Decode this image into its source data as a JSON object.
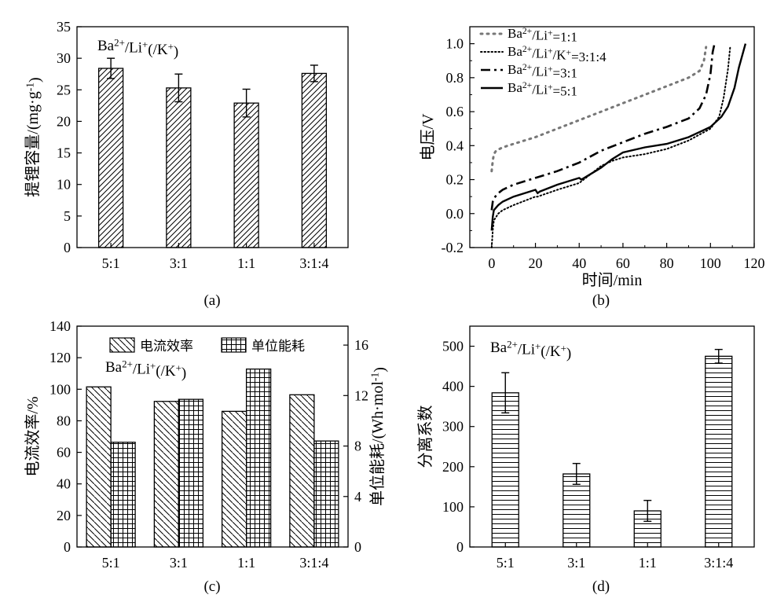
{
  "chart_data": [
    {
      "id": "a",
      "type": "bar",
      "panel_label": "(a)",
      "annotation": "Ba²⁺/Li⁺(/K⁺)",
      "categories": [
        "5:1",
        "3:1",
        "1:1",
        "3:1:4"
      ],
      "ylabel": "提锂容量/(mg·g⁻¹)",
      "ylim": [
        0,
        35
      ],
      "yticks": [
        0,
        5,
        10,
        15,
        20,
        25,
        30,
        35
      ],
      "series": [
        {
          "name": "提锂容量",
          "values": [
            28.4,
            25.3,
            22.9,
            27.6
          ],
          "errors": [
            1.6,
            2.2,
            2.2,
            1.3
          ],
          "pattern": "diag"
        }
      ]
    },
    {
      "id": "b",
      "type": "line",
      "panel_label": "(b)",
      "xlabel": "时间/min",
      "ylabel": "电压/V",
      "xlim": [
        -10,
        120
      ],
      "ylim": [
        -0.2,
        1.1
      ],
      "xticks": [
        0,
        20,
        40,
        60,
        80,
        100,
        120
      ],
      "yticks": [
        -0.2,
        0.0,
        0.2,
        0.4,
        0.6,
        0.8,
        1.0
      ],
      "series": [
        {
          "name": "Ba²⁺/Li⁺=1:1",
          "style": "dot-gray",
          "x": [
            0,
            0.5,
            1,
            2,
            5,
            10,
            20,
            30,
            40,
            50,
            60,
            70,
            80,
            90,
            95,
            97,
            98
          ],
          "y": [
            0.25,
            0.31,
            0.35,
            0.37,
            0.39,
            0.41,
            0.45,
            0.5,
            0.55,
            0.6,
            0.65,
            0.7,
            0.75,
            0.8,
            0.84,
            0.9,
            0.98
          ]
        },
        {
          "name": "Ba²⁺/Li⁺/K⁺=3:1:4",
          "style": "dot-black",
          "x": [
            0,
            0.5,
            1,
            3,
            5,
            10,
            20,
            21,
            30,
            40,
            45,
            50,
            55,
            60,
            70,
            80,
            90,
            100,
            104,
            106,
            108,
            109
          ],
          "y": [
            -0.2,
            -0.1,
            -0.04,
            0.0,
            0.02,
            0.05,
            0.1,
            0.1,
            0.14,
            0.18,
            0.23,
            0.28,
            0.31,
            0.33,
            0.35,
            0.38,
            0.43,
            0.5,
            0.57,
            0.68,
            0.85,
            0.98
          ]
        },
        {
          "name": "Ba²⁺/Li⁺=3:1",
          "style": "dashdot",
          "x": [
            0,
            0.5,
            1,
            3,
            5,
            10,
            20,
            30,
            40,
            50,
            60,
            70,
            80,
            90,
            95,
            98,
            100,
            101,
            102
          ],
          "y": [
            0.02,
            0.07,
            0.09,
            0.12,
            0.14,
            0.17,
            0.21,
            0.25,
            0.3,
            0.37,
            0.42,
            0.47,
            0.51,
            0.56,
            0.62,
            0.7,
            0.82,
            0.95,
            1.01
          ]
        },
        {
          "name": "Ba²⁺/Li⁺=5:1",
          "style": "solid",
          "x": [
            0,
            0.5,
            1,
            3,
            5,
            10,
            20,
            21,
            22,
            30,
            40,
            41,
            50,
            55,
            60,
            70,
            80,
            90,
            100,
            105,
            108,
            111,
            113,
            116
          ],
          "y": [
            -0.1,
            -0.02,
            0.02,
            0.05,
            0.07,
            0.1,
            0.14,
            0.12,
            0.13,
            0.17,
            0.21,
            0.2,
            0.27,
            0.32,
            0.36,
            0.39,
            0.41,
            0.45,
            0.51,
            0.57,
            0.63,
            0.74,
            0.86,
            1.0
          ]
        }
      ]
    },
    {
      "id": "c",
      "type": "bar",
      "panel_label": "(c)",
      "annotation": "Ba²⁺/Li⁺(/K⁺)",
      "categories": [
        "5:1",
        "3:1",
        "1:1",
        "3:1:4"
      ],
      "ylabel": "电流效率/%",
      "y2label": "单位能耗/(Wh·mol⁻¹)",
      "ylim": [
        0,
        140
      ],
      "yticks": [
        0,
        20,
        40,
        60,
        80,
        100,
        120,
        140
      ],
      "y2lim": [
        0,
        17.5
      ],
      "y2ticks": [
        0,
        4,
        8,
        12,
        16
      ],
      "series": [
        {
          "name": "电流效率",
          "axis": "left",
          "values": [
            101.5,
            92.3,
            86.0,
            96.5
          ],
          "pattern": "diag-back"
        },
        {
          "name": "单位能耗",
          "axis": "right",
          "values": [
            8.3,
            11.7,
            14.1,
            8.4
          ],
          "pattern": "grid"
        }
      ]
    },
    {
      "id": "d",
      "type": "bar",
      "panel_label": "(d)",
      "annotation": "Ba²⁺/Li⁺(/K⁺)",
      "categories": [
        "5:1",
        "3:1",
        "1:1",
        "3:1:4"
      ],
      "ylabel": "分离系数",
      "ylim": [
        0,
        550
      ],
      "yticks": [
        0,
        100,
        200,
        300,
        400,
        500
      ],
      "series": [
        {
          "name": "分离系数",
          "values": [
            384,
            182,
            90,
            475
          ],
          "errors": [
            50,
            26,
            26,
            17
          ],
          "pattern": "horiz"
        }
      ]
    }
  ]
}
